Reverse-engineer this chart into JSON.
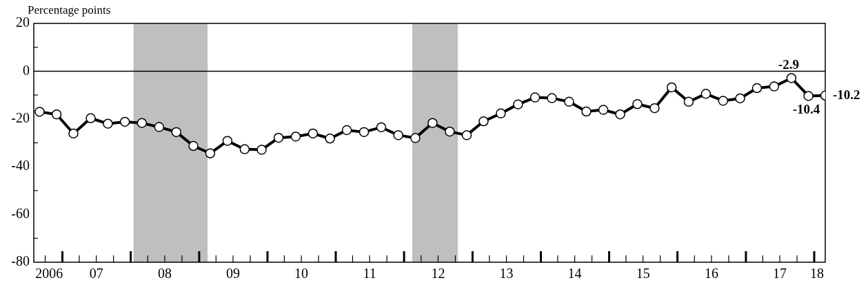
{
  "chart_data": {
    "type": "line",
    "ylabel": "Percentage points",
    "legend": false,
    "marker": "circle",
    "line_style": "solid",
    "x": [
      "2006-09",
      "2006-12",
      "2007-03",
      "2007-06",
      "2007-09",
      "2007-12",
      "2008-03",
      "2008-06",
      "2008-09",
      "2008-12",
      "2009-03",
      "2009-06",
      "2009-09",
      "2009-12",
      "2010-03",
      "2010-06",
      "2010-09",
      "2010-12",
      "2011-03",
      "2011-06",
      "2011-09",
      "2011-12",
      "2012-03",
      "2012-06",
      "2012-09",
      "2012-12",
      "2013-03",
      "2013-06",
      "2013-09",
      "2013-12",
      "2014-03",
      "2014-06",
      "2014-09",
      "2014-12",
      "2015-03",
      "2015-06",
      "2015-09",
      "2015-12",
      "2016-03",
      "2016-06",
      "2016-09",
      "2016-12",
      "2017-03",
      "2017-06",
      "2017-09",
      "2017-12",
      "2018-03"
    ],
    "series": [
      {
        "color": "#000000",
        "values": [
          -17.0,
          -18.1,
          -26.1,
          -19.7,
          -22.0,
          -21.2,
          -21.7,
          -23.4,
          -25.5,
          -31.3,
          -34.4,
          -29.2,
          -32.7,
          -32.9,
          -27.9,
          -27.4,
          -26.1,
          -28.2,
          -24.7,
          -25.5,
          -23.5,
          -26.8,
          -28.0,
          -21.7,
          -25.3,
          -26.8,
          -21.0,
          -17.7,
          -13.9,
          -11.0,
          -11.3,
          -12.8,
          -16.9,
          -16.2,
          -18.1,
          -13.8,
          -15.5,
          -6.8,
          -12.8,
          -9.5,
          -12.4,
          -11.4,
          -7.1,
          -6.4,
          -2.9,
          -10.4,
          -10.2
        ],
        "value_labels": [
          null,
          null,
          null,
          null,
          null,
          null,
          null,
          null,
          null,
          null,
          null,
          null,
          null,
          null,
          null,
          null,
          null,
          null,
          null,
          null,
          null,
          null,
          null,
          null,
          null,
          null,
          null,
          null,
          null,
          null,
          null,
          null,
          null,
          null,
          null,
          null,
          null,
          null,
          null,
          null,
          null,
          null,
          null,
          null,
          "-2.9",
          "-10.4",
          "-10.2"
        ]
      }
    ],
    "xlim": [
      "2006-08",
      "2018-03"
    ],
    "xticks": [
      {
        "value": "2006-10",
        "label": null
      },
      {
        "value": "2006-10-22",
        "label": "2006"
      },
      {
        "value": "2007-01",
        "label": null
      },
      {
        "value": "2007-04",
        "label": null
      },
      {
        "value": "2007-07",
        "label": null
      },
      {
        "value": "2007-10",
        "label": null
      },
      {
        "value": "2007-07",
        "label": "07"
      },
      {
        "value": "2008-01",
        "label": null
      },
      {
        "value": "2008-04",
        "label": null
      },
      {
        "value": "2008-07",
        "label": null
      },
      {
        "value": "2008-10",
        "label": null
      },
      {
        "value": "2008-07",
        "label": "08"
      },
      {
        "value": "2009-01",
        "label": null
      },
      {
        "value": "2009-04",
        "label": null
      },
      {
        "value": "2009-07",
        "label": null
      },
      {
        "value": "2009-10",
        "label": null
      },
      {
        "value": "2009-07",
        "label": "09"
      },
      {
        "value": "2010-01",
        "label": null
      },
      {
        "value": "2010-04",
        "label": null
      },
      {
        "value": "2010-07",
        "label": null
      },
      {
        "value": "2010-10",
        "label": null
      },
      {
        "value": "2010-07",
        "label": "10"
      },
      {
        "value": "2011-01",
        "label": null
      },
      {
        "value": "2011-04",
        "label": null
      },
      {
        "value": "2011-07",
        "label": null
      },
      {
        "value": "2011-10",
        "label": null
      },
      {
        "value": "2011-07",
        "label": "11"
      },
      {
        "value": "2012-01",
        "label": null
      },
      {
        "value": "2012-04",
        "label": null
      },
      {
        "value": "2012-07",
        "label": null
      },
      {
        "value": "2012-10",
        "label": null
      },
      {
        "value": "2012-07",
        "label": "12"
      },
      {
        "value": "2013-01",
        "label": null
      },
      {
        "value": "2013-04",
        "label": null
      },
      {
        "value": "2013-07",
        "label": null
      },
      {
        "value": "2013-10",
        "label": null
      },
      {
        "value": "2013-07",
        "label": "13"
      },
      {
        "value": "2014-01",
        "label": null
      },
      {
        "value": "2014-04",
        "label": null
      },
      {
        "value": "2014-07",
        "label": null
      },
      {
        "value": "2014-10",
        "label": null
      },
      {
        "value": "2014-07",
        "label": "14"
      },
      {
        "value": "2015-01",
        "label": null
      },
      {
        "value": "2015-04",
        "label": null
      },
      {
        "value": "2015-07",
        "label": null
      },
      {
        "value": "2015-10",
        "label": null
      },
      {
        "value": "2015-07",
        "label": "15"
      },
      {
        "value": "2016-01",
        "label": null
      },
      {
        "value": "2016-04",
        "label": null
      },
      {
        "value": "2016-07",
        "label": null
      },
      {
        "value": "2016-10",
        "label": null
      },
      {
        "value": "2016-07",
        "label": "16"
      },
      {
        "value": "2017-01",
        "label": null
      },
      {
        "value": "2017-04",
        "label": null
      },
      {
        "value": "2017-07",
        "label": null
      },
      {
        "value": "2017-10",
        "label": null
      },
      {
        "value": "2017-07",
        "label": "17"
      },
      {
        "value": "2018-01",
        "label": null
      },
      {
        "value": "2018-01-16",
        "label": "18"
      }
    ],
    "ylim": [
      -80,
      20
    ],
    "yticks": [
      -80,
      {
        "value": -70,
        "label": null
      },
      -60,
      {
        "value": -50,
        "label": null
      },
      -40,
      {
        "value": -30,
        "label": null
      },
      -20,
      {
        "value": -10,
        "label": null
      },
      0,
      {
        "value": 10,
        "label": null
      },
      20
    ],
    "ref_lines": [
      {
        "axis": "y",
        "value": 0,
        "color": "#000000"
      }
    ],
    "bands": [
      {
        "axis": "x",
        "from": "2008-01-16",
        "to": "2009-02-15",
        "color": "#bfbfbf"
      },
      {
        "axis": "x",
        "from": "2012-02-14",
        "to": "2012-10-14",
        "color": "#bfbfbf"
      }
    ]
  }
}
